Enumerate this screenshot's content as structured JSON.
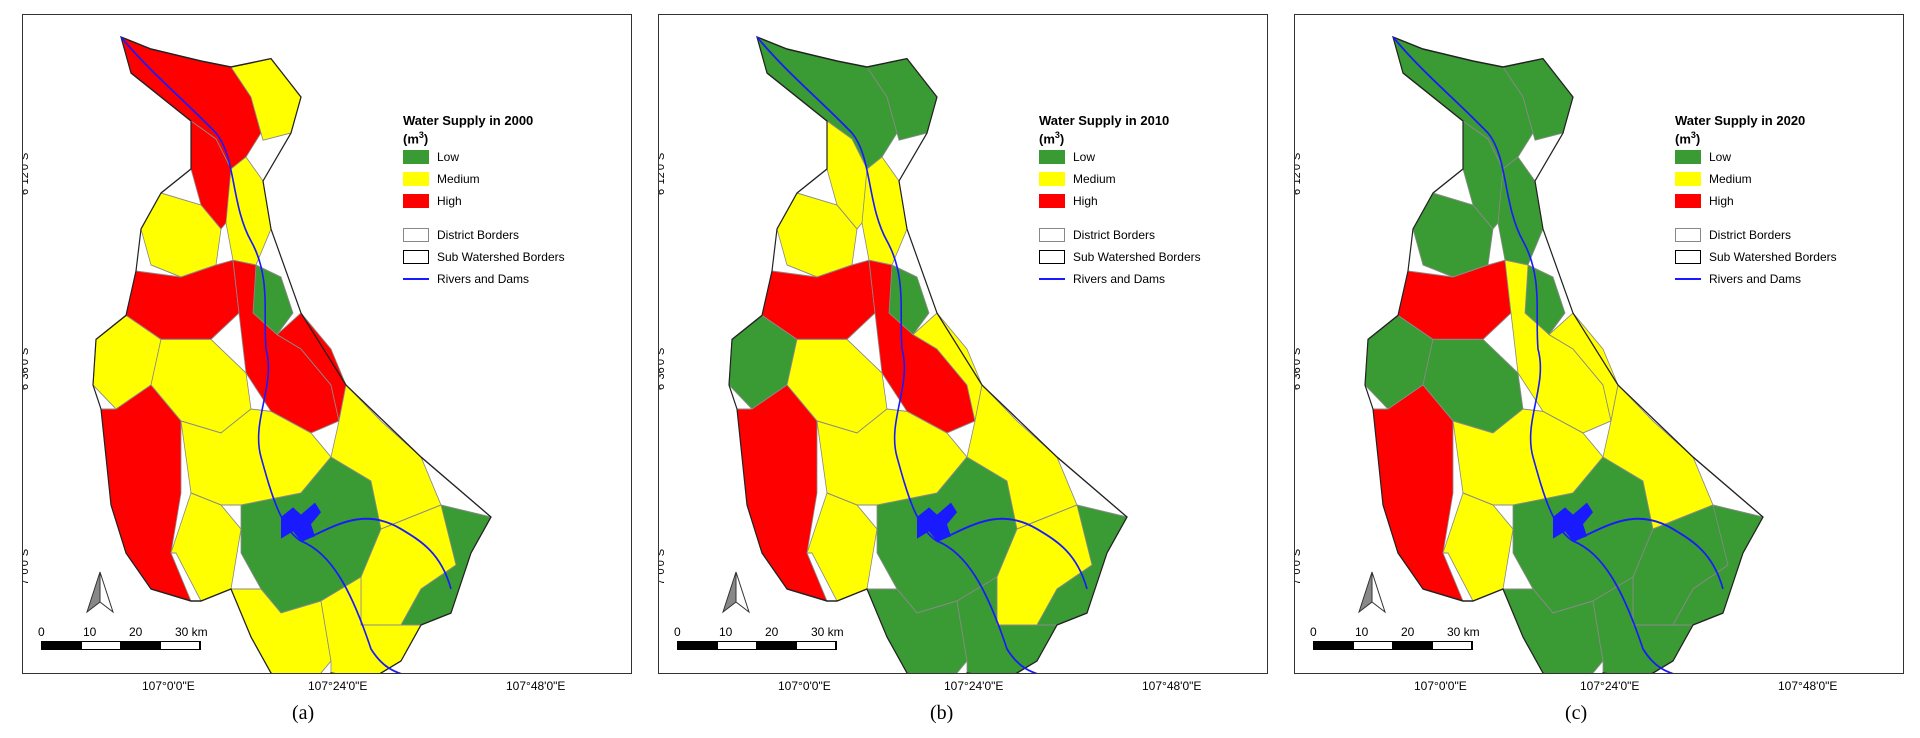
{
  "colors": {
    "low": "#3a9a34",
    "medium": "#ffff00",
    "high": "#ff0000",
    "river": "#1a1aff",
    "border": "#555555"
  },
  "axes": {
    "lat_labels": [
      "6°12'0\"S",
      "6°36'0\"S",
      "7°0'0\"S"
    ],
    "lon_labels": [
      "107°0'0\"E",
      "107°24'0\"E",
      "107°48'0\"E"
    ]
  },
  "scale": {
    "ticks": [
      "0",
      "10",
      "20",
      "30 km"
    ]
  },
  "legend": {
    "unit": "(m",
    "unit_sup": "3",
    "unit_close": ")",
    "low": "Low",
    "medium": "Medium",
    "high": "High",
    "district": "District Borders",
    "watershed": "Sub Watershed Borders",
    "rivers": "Rivers and Dams"
  },
  "panels": [
    {
      "title": "Water Supply in 2000",
      "caption": "(a)"
    },
    {
      "title": "Water Supply in 2010",
      "caption": "(b)"
    },
    {
      "title": "Water Supply in 2020",
      "caption": "(c)"
    }
  ]
}
